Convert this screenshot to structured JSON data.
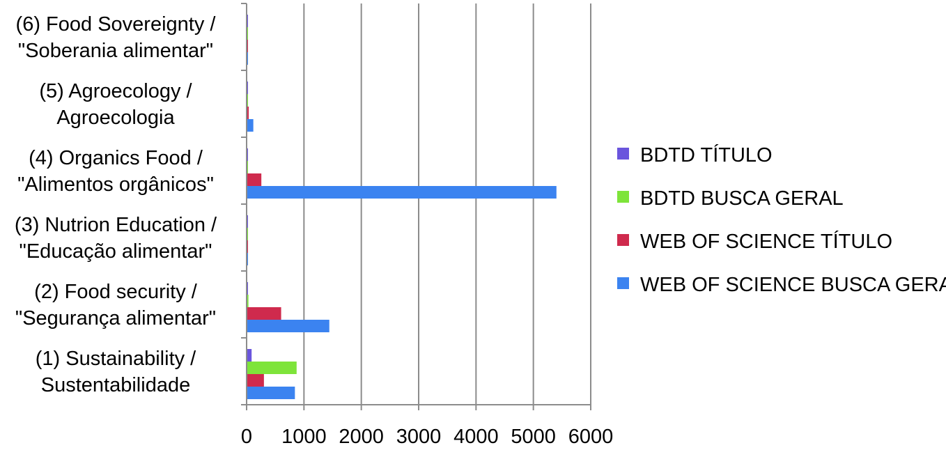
{
  "chart_data": {
    "type": "bar",
    "orientation": "horizontal",
    "categories": [
      [
        "(1) Sustainability /",
        "Sustentabilidade"
      ],
      [
        "(2) Food security /",
        "\"Segurança alimentar\""
      ],
      [
        "(3) Nutrion Education /",
        "\"Educação alimentar\""
      ],
      [
        "(4) Organics Food /",
        "\"Alimentos orgânicos\""
      ],
      [
        "(5) Agroecology /",
        "Agroecologia"
      ],
      [
        "(6) Food Sovereignty /",
        "\"Soberania alimentar\""
      ]
    ],
    "series": [
      {
        "name": "BDTD TÍTULO",
        "color": "#6a55dd",
        "values": [
          75,
          5,
          3,
          10,
          5,
          2
        ]
      },
      {
        "name": "BDTD BUSCA GERAL",
        "color": "#7ee43a",
        "values": [
          860,
          20,
          3,
          10,
          10,
          2
        ]
      },
      {
        "name": "WEB OF SCIENCE TÍTULO",
        "color": "#cf2a4d",
        "values": [
          290,
          590,
          3,
          245,
          25,
          5
        ]
      },
      {
        "name": "WEB OF SCIENCE BUSCA GERAL",
        "color": "#3b83f0",
        "values": [
          830,
          1430,
          3,
          5390,
          105,
          12
        ]
      }
    ],
    "xlim": [
      0,
      6000
    ],
    "xticks": [
      "0",
      "1000",
      "2000",
      "3000",
      "4000",
      "5000",
      "6000"
    ],
    "grid": true,
    "legend": "right"
  }
}
